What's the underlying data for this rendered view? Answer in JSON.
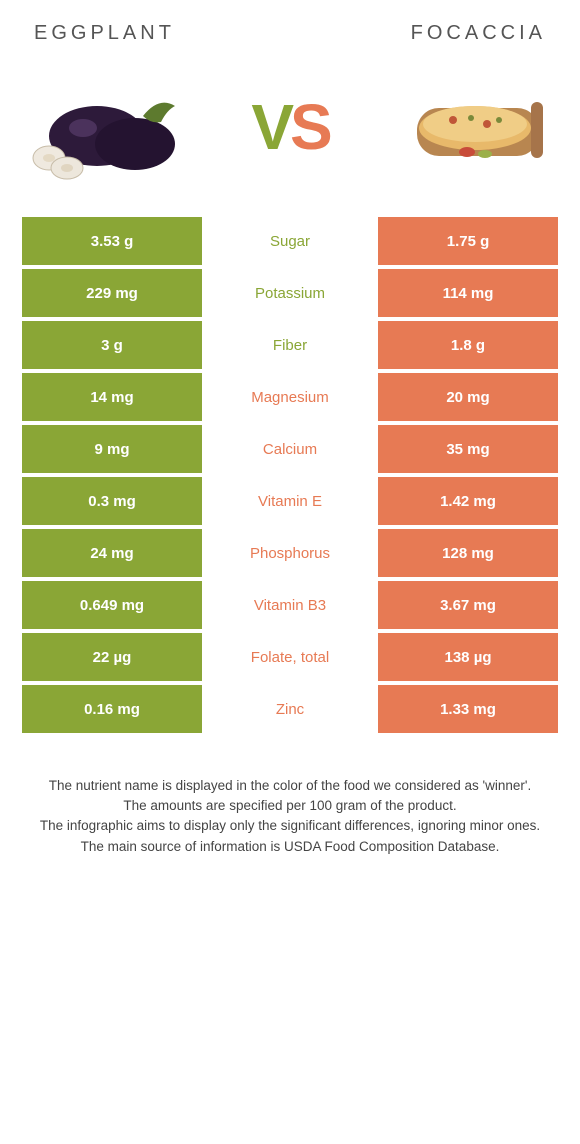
{
  "colors": {
    "left": "#8aa636",
    "right": "#e77a54",
    "row_gap": "#ffffff",
    "text": "#555555",
    "value_text": "#ffffff"
  },
  "foods": {
    "left": "EGGPLANT",
    "right": "FOCACCIA"
  },
  "vs": {
    "v": "V",
    "s": "S"
  },
  "rows": [
    {
      "name": "Sugar",
      "left": "3.53 g",
      "right": "1.75 g",
      "winner": "left"
    },
    {
      "name": "Potassium",
      "left": "229 mg",
      "right": "114 mg",
      "winner": "left"
    },
    {
      "name": "Fiber",
      "left": "3 g",
      "right": "1.8 g",
      "winner": "left"
    },
    {
      "name": "Magnesium",
      "left": "14 mg",
      "right": "20 mg",
      "winner": "right"
    },
    {
      "name": "Calcium",
      "left": "9 mg",
      "right": "35 mg",
      "winner": "right"
    },
    {
      "name": "Vitamin E",
      "left": "0.3 mg",
      "right": "1.42 mg",
      "winner": "right"
    },
    {
      "name": "Phosphorus",
      "left": "24 mg",
      "right": "128 mg",
      "winner": "right"
    },
    {
      "name": "Vitamin B3",
      "left": "0.649 mg",
      "right": "3.67 mg",
      "winner": "right"
    },
    {
      "name": "Folate, total",
      "left": "22 µg",
      "right": "138 µg",
      "winner": "right"
    },
    {
      "name": "Zinc",
      "left": "0.16 mg",
      "right": "1.33 mg",
      "winner": "right"
    }
  ],
  "footnotes": [
    "The nutrient name is displayed in the color of the food we considered as 'winner'.",
    "The amounts are specified per 100 gram of the product.",
    "The infographic aims to display only the significant differences, ignoring minor ones.",
    "The main source of information is USDA Food Composition Database."
  ]
}
